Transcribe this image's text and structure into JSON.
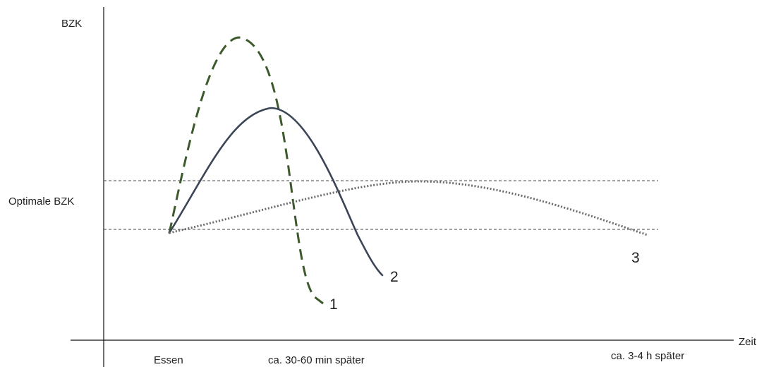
{
  "chart_data": {
    "type": "line",
    "title": "",
    "xlabel": "Zeit",
    "ylabel": "BZK",
    "x_tick_labels": [
      "Essen",
      "ca. 30-60 min später",
      "ca. 3-4 h später"
    ],
    "y_band_label": "Optimale BZK",
    "colors": {
      "axis": "#111111",
      "band": "#444444",
      "series_1": "#3d5a2c",
      "series_2": "#3a4656",
      "series_3": "#6b6b6b"
    },
    "series": [
      {
        "name": "1",
        "line_style": "dashed"
      },
      {
        "name": "2",
        "line_style": "solid"
      },
      {
        "name": "3",
        "line_style": "dotted"
      }
    ]
  }
}
